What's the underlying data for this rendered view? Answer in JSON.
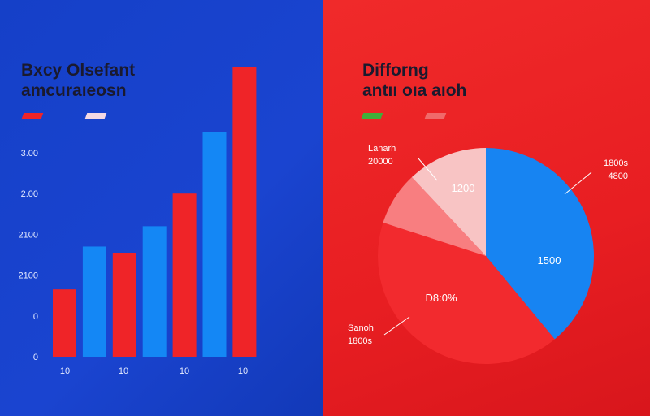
{
  "colors": {
    "red": "#ef2428",
    "blue": "#1487f5",
    "pie_blue": "#1784f2",
    "pie_light": "#f8c4c4",
    "pie_pink": "#f87e80",
    "pie_red": "#f22a2e",
    "green": "#3fae3a"
  },
  "chart_data": [
    {
      "type": "bar",
      "title": [
        "Bxcy Olsefant",
        "amcuraıeosn"
      ],
      "legend": {
        "placement": "top-left",
        "entries": [
          {
            "color": "#ef2428"
          },
          {
            "color": "#f4d9e4"
          }
        ]
      },
      "yticks": [
        {
          "value": 0,
          "label": "0"
        },
        {
          "value": 1,
          "label": "0"
        },
        {
          "value": 2,
          "label": "2100"
        },
        {
          "value": 3,
          "label": "2100"
        },
        {
          "value": 4,
          "label": "2.00"
        },
        {
          "value": 5,
          "label": "3.00"
        }
      ],
      "ylim": [
        0,
        7
      ],
      "xtick_labels": [
        "10",
        "10",
        "10",
        "10"
      ],
      "bars": [
        {
          "value": 1.65,
          "color": "red"
        },
        {
          "value": 2.7,
          "color": "blue"
        },
        {
          "value": 2.55,
          "color": "red"
        },
        {
          "value": 3.2,
          "color": "blue"
        },
        {
          "value": 4.0,
          "color": "red"
        },
        {
          "value": 5.5,
          "color": "blue"
        },
        {
          "value": 7.1,
          "color": "red"
        }
      ]
    },
    {
      "type": "pie",
      "title": [
        "Difforng",
        "antıı oıa aıoh"
      ],
      "legend": {
        "placement": "top-left",
        "entries": [
          {
            "color": "#3fae3a"
          },
          {
            "color": "#f06a6a"
          }
        ]
      },
      "slices": [
        {
          "value": 39,
          "color": "pie_blue",
          "label": "1500",
          "external_label": [
            "1800s",
            "4800"
          ]
        },
        {
          "value": 41,
          "color": "pie_red",
          "label": "D8:0%",
          "external_label": [
            "Sanoh",
            "1800s"
          ]
        },
        {
          "value": 8,
          "color": "pie_pink",
          "label": "",
          "external_label": [
            "Lanarh",
            "20000"
          ]
        },
        {
          "value": 12,
          "color": "pie_light",
          "label": "1200",
          "external_label": []
        }
      ]
    }
  ]
}
